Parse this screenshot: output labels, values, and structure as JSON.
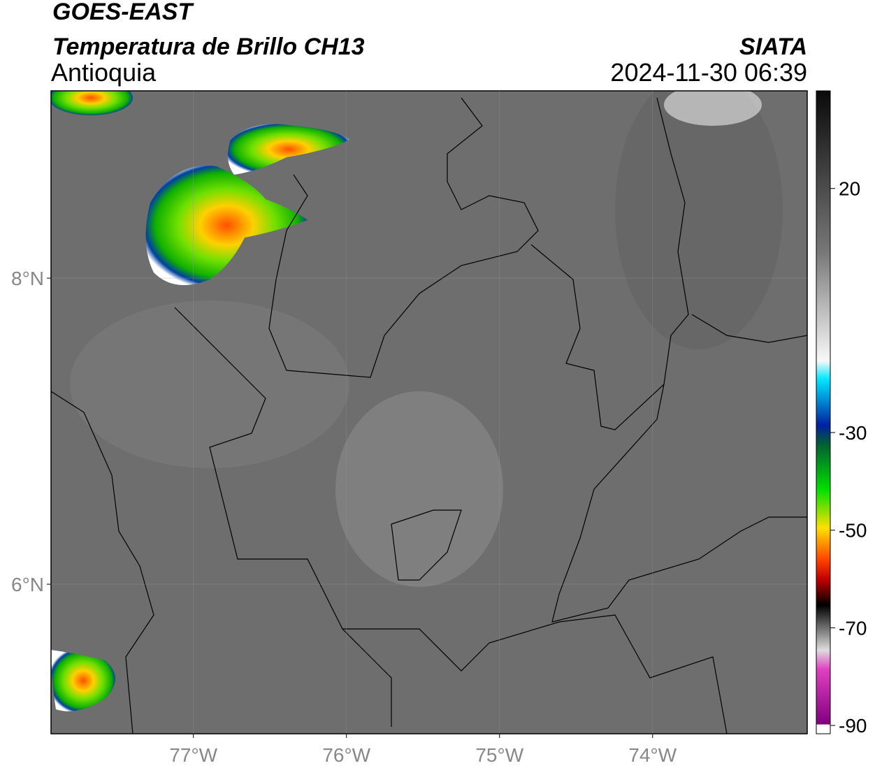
{
  "header": {
    "source": "GOES-EAST",
    "product": "Temperatura de Brillo CH13",
    "region": "Antioquia",
    "agency": "SIATA",
    "datetime": "2024-11-30 06:39"
  },
  "map": {
    "xlim": [
      -77.93,
      -72.99
    ],
    "ylim": [
      5.023,
      9.224
    ],
    "xticks": [
      {
        "value": -77,
        "label": "77°W"
      },
      {
        "value": -76,
        "label": "76°W"
      },
      {
        "value": -75,
        "label": "75°W"
      },
      {
        "value": -74,
        "label": "74°W"
      }
    ],
    "yticks": [
      {
        "value": 8,
        "label": "8°N"
      },
      {
        "value": 6,
        "label": "6°N"
      }
    ]
  },
  "colorbar": {
    "lim": [
      -91.7,
      40
    ],
    "ticks": [
      20,
      -30,
      -50,
      -70,
      -90
    ]
  }
}
